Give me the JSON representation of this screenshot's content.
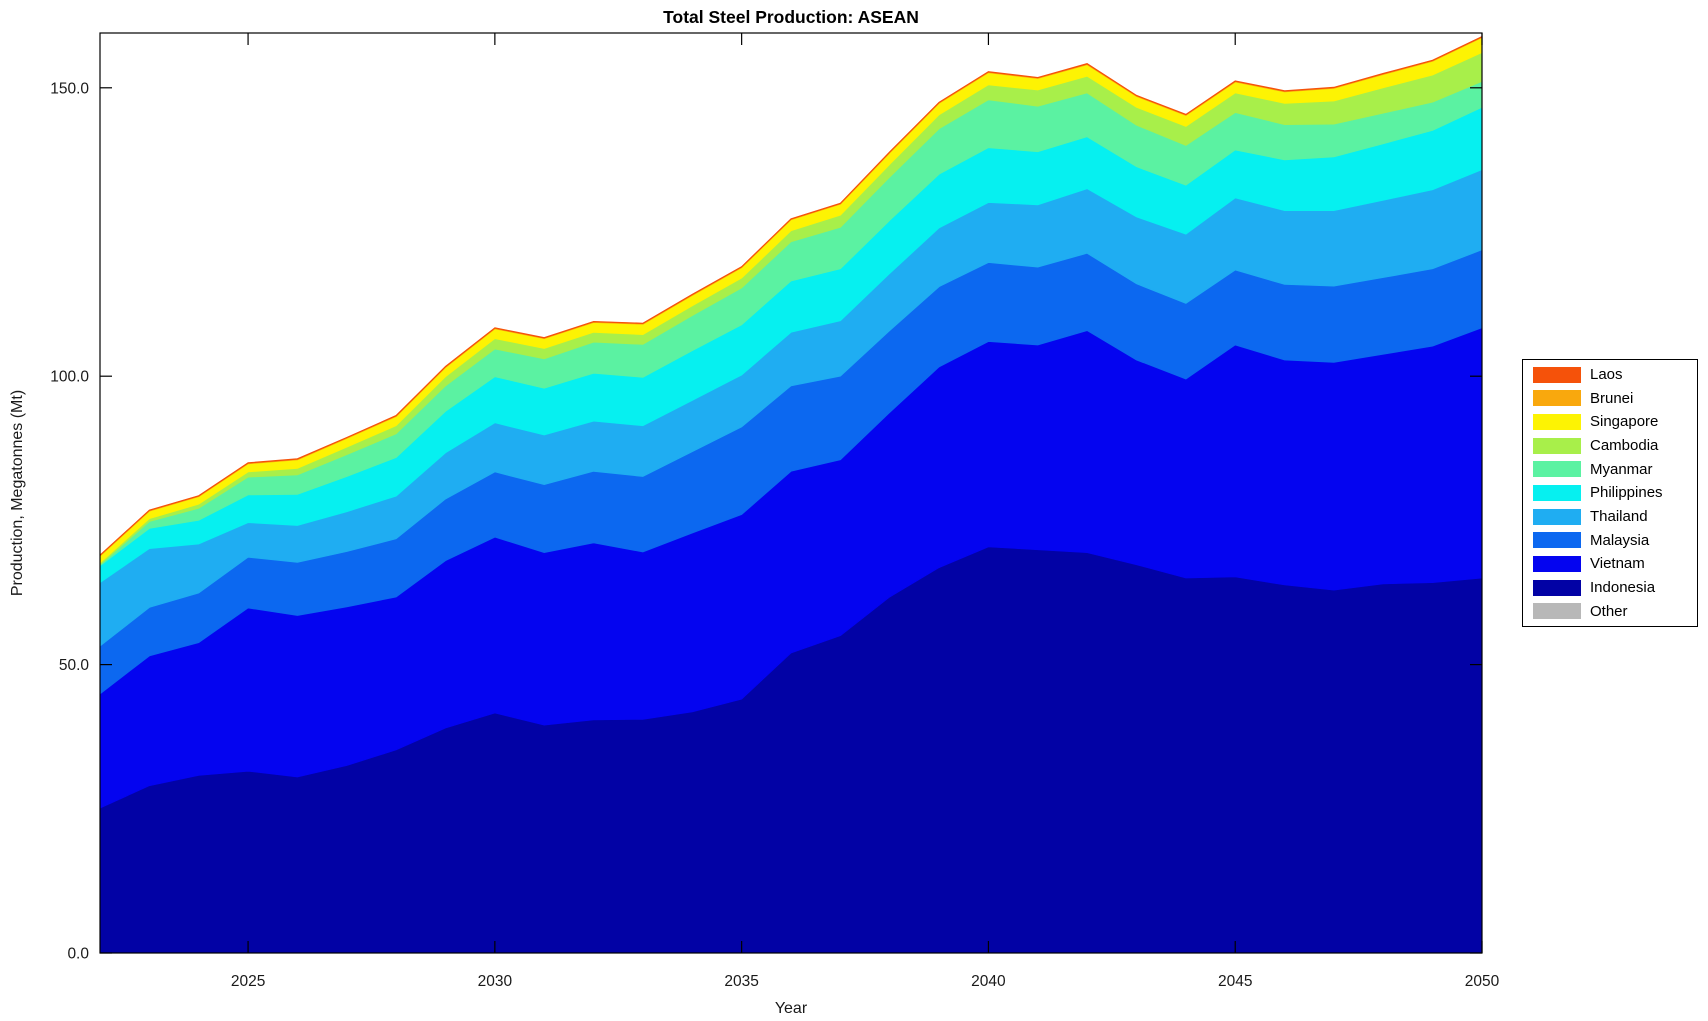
{
  "chart": {
    "title": "Total Steel Production: ASEAN",
    "xlabel": "Year",
    "ylabel": "Production, Megatonnes (Mt)"
  },
  "chart_data": {
    "type": "area",
    "stacked": true,
    "title": "Total Steel Production: ASEAN",
    "xlabel": "Year",
    "ylabel": "Production, Megatonnes (Mt)",
    "xlim": [
      2022,
      2050
    ],
    "ylim": [
      0,
      159.5
    ],
    "xticks": [
      2025,
      2030,
      2035,
      2040,
      2045,
      2050
    ],
    "xtick_labels": [
      "2025",
      "2030",
      "2035",
      "2040",
      "2045",
      "2050"
    ],
    "yticks": [
      0,
      50,
      100,
      150
    ],
    "ytick_labels": [
      "0.0",
      "50.0",
      "100.0",
      "150.0"
    ],
    "grid": false,
    "legend_position": "right-outside",
    "x": [
      2022,
      2023,
      2024,
      2025,
      2026,
      2027,
      2028,
      2029,
      2030,
      2031,
      2032,
      2033,
      2034,
      2035,
      2036,
      2037,
      2038,
      2039,
      2040,
      2041,
      2042,
      2043,
      2044,
      2045,
      2046,
      2047,
      2048,
      2049,
      2050
    ],
    "stack_order_note": "series listed bottom-to-top as stacked; values in Megatonnes",
    "series": [
      {
        "name": "Other",
        "color": "#b8b8b8",
        "values": [
          0.03,
          0.03,
          0.03,
          0.03,
          0.03,
          0.03,
          0.03,
          0.03,
          0.03,
          0.03,
          0.03,
          0.03,
          0.03,
          0.03,
          0.03,
          0.03,
          0.03,
          0.03,
          0.03,
          0.03,
          0.03,
          0.03,
          0.03,
          0.03,
          0.03,
          0.03,
          0.03,
          0.03,
          0.03
        ]
      },
      {
        "name": "Indonesia",
        "color": "#0202a5",
        "values": [
          25.1,
          29.0,
          30.8,
          31.5,
          30.5,
          32.5,
          35.2,
          39.0,
          41.6,
          39.5,
          40.4,
          40.5,
          41.8,
          44.0,
          52.0,
          55.0,
          61.7,
          66.8,
          70.4,
          69.9,
          69.4,
          67.3,
          65.0,
          65.2,
          63.8,
          62.9,
          64.0,
          64.2,
          65.0
        ]
      },
      {
        "name": "Vietnam",
        "color": "#0404f0",
        "values": [
          19.8,
          22.5,
          23.0,
          28.3,
          28.0,
          27.5,
          26.5,
          29.0,
          30.5,
          29.9,
          30.7,
          29.0,
          31.0,
          32.0,
          31.5,
          30.5,
          32.0,
          34.8,
          35.6,
          35.5,
          38.5,
          35.5,
          34.5,
          40.2,
          39.0,
          39.5,
          39.8,
          41.0,
          43.4
        ]
      },
      {
        "name": "Malaysia",
        "color": "#0c68f0",
        "values": [
          8.3,
          8.4,
          8.6,
          8.8,
          9.2,
          9.6,
          10.1,
          10.7,
          11.3,
          11.8,
          12.4,
          13.1,
          14.1,
          15.2,
          14.8,
          14.5,
          14.2,
          13.9,
          13.7,
          13.5,
          13.4,
          13.2,
          13.1,
          13.0,
          13.1,
          13.2,
          13.3,
          13.4,
          13.5
        ]
      },
      {
        "name": "Thailand",
        "color": "#1fadf2",
        "values": [
          11.0,
          10.2,
          8.5,
          6.0,
          6.4,
          6.9,
          7.4,
          8.0,
          8.5,
          8.6,
          8.7,
          8.8,
          8.9,
          9.0,
          9.3,
          9.6,
          9.9,
          10.2,
          10.4,
          10.8,
          11.2,
          11.6,
          12.0,
          12.5,
          12.8,
          13.1,
          13.4,
          13.7,
          13.9
        ]
      },
      {
        "name": "Philippines",
        "color": "#06f0f0",
        "values": [
          2.9,
          3.5,
          4.1,
          4.8,
          5.4,
          6.1,
          6.7,
          7.2,
          8.0,
          8.1,
          8.3,
          8.4,
          8.6,
          8.7,
          8.9,
          9.0,
          9.2,
          9.3,
          9.5,
          9.2,
          9.0,
          8.7,
          8.5,
          8.3,
          8.8,
          9.3,
          9.8,
          10.3,
          10.8
        ]
      },
      {
        "name": "Myanmar",
        "color": "#5bf2a2",
        "values": [
          0.2,
          1.2,
          2.1,
          3.1,
          3.4,
          3.8,
          4.1,
          4.4,
          4.8,
          5.1,
          5.4,
          5.7,
          6.1,
          6.4,
          6.8,
          7.2,
          7.5,
          7.9,
          8.3,
          7.9,
          7.6,
          7.2,
          6.9,
          6.5,
          6.1,
          5.7,
          5.3,
          4.9,
          4.5
        ]
      },
      {
        "name": "Cambodia",
        "color": "#a8ef4a",
        "values": [
          0.3,
          0.5,
          0.7,
          0.9,
          1.1,
          1.3,
          1.4,
          1.6,
          1.8,
          1.8,
          1.7,
          1.7,
          1.7,
          1.7,
          1.9,
          2.1,
          2.2,
          2.4,
          2.6,
          2.8,
          2.9,
          3.1,
          3.3,
          3.4,
          3.7,
          4.0,
          4.4,
          4.7,
          5.0
        ]
      },
      {
        "name": "Singapore",
        "color": "#fdf303",
        "values": [
          1.2,
          1.3,
          1.3,
          1.4,
          1.5,
          1.5,
          1.6,
          1.6,
          1.7,
          1.7,
          1.7,
          1.8,
          1.8,
          1.8,
          1.9,
          1.9,
          2.0,
          2.0,
          2.1,
          2.0,
          2.0,
          1.9,
          1.9,
          1.9,
          2.0,
          2.2,
          2.3,
          2.4,
          2.6
        ]
      },
      {
        "name": "Brunei",
        "color": "#f9a80d",
        "values": [
          0.1,
          0.1,
          0.1,
          0.1,
          0.1,
          0.1,
          0.1,
          0.1,
          0.1,
          0.1,
          0.1,
          0.1,
          0.1,
          0.1,
          0.1,
          0.1,
          0.1,
          0.1,
          0.1,
          0.1,
          0.1,
          0.1,
          0.1,
          0.1,
          0.1,
          0.1,
          0.1,
          0.1,
          0.1
        ]
      },
      {
        "name": "Laos",
        "color": "#f5520a",
        "values": [
          0.06,
          0.06,
          0.06,
          0.06,
          0.06,
          0.06,
          0.06,
          0.06,
          0.06,
          0.06,
          0.06,
          0.06,
          0.06,
          0.06,
          0.06,
          0.06,
          0.06,
          0.06,
          0.06,
          0.06,
          0.06,
          0.06,
          0.06,
          0.06,
          0.06,
          0.06,
          0.06,
          0.06,
          0.06
        ]
      }
    ],
    "legend_order": [
      "Laos",
      "Brunei",
      "Singapore",
      "Cambodia",
      "Myanmar",
      "Philippines",
      "Thailand",
      "Malaysia",
      "Vietnam",
      "Indonesia",
      "Other"
    ]
  }
}
